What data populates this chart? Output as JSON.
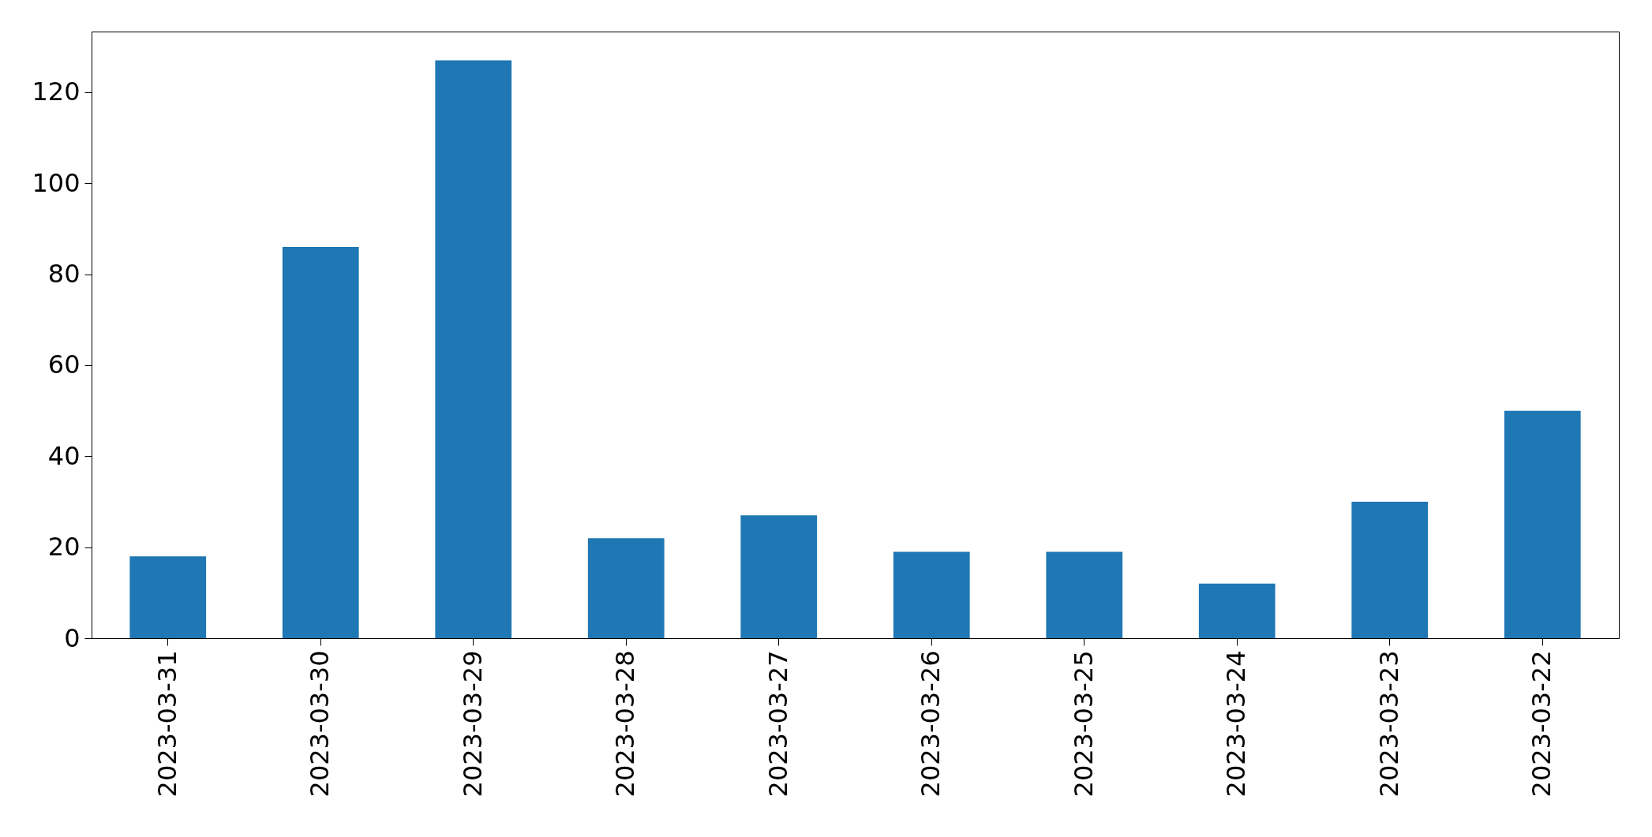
{
  "chart_data": {
    "type": "bar",
    "categories": [
      "2023-03-31",
      "2023-03-30",
      "2023-03-29",
      "2023-03-28",
      "2023-03-27",
      "2023-03-26",
      "2023-03-25",
      "2023-03-24",
      "2023-03-23",
      "2023-03-22"
    ],
    "values": [
      18,
      86,
      127,
      22,
      27,
      19,
      19,
      12,
      30,
      50
    ],
    "color": "#1f77b4",
    "ylim": [
      0,
      133.35
    ],
    "yticks": [
      0,
      20,
      40,
      60,
      80,
      100,
      120
    ],
    "grid": false
  }
}
